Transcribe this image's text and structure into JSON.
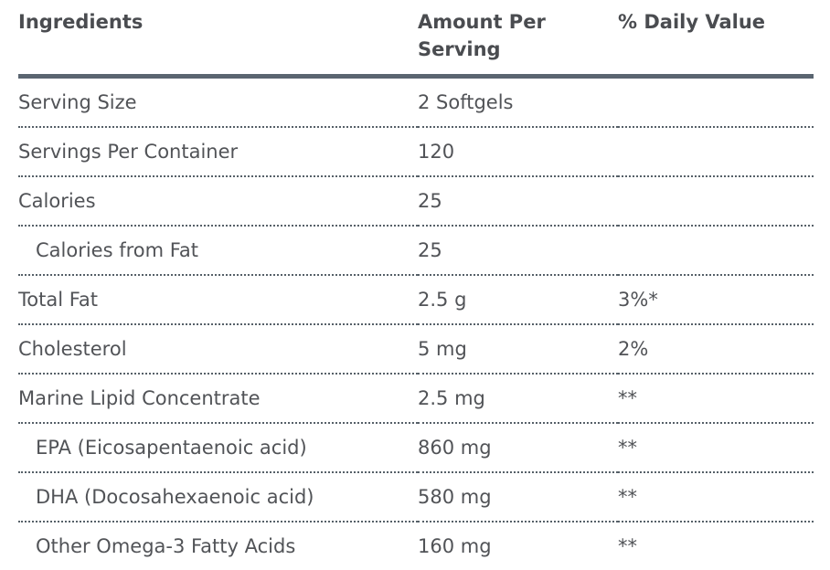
{
  "table": {
    "columns": [
      {
        "label": "Ingredients"
      },
      {
        "label": "Amount Per Serving"
      },
      {
        "label": "% Daily Value"
      }
    ],
    "rows": [
      {
        "ingredient": "Serving Size",
        "amount": "2 Softgels",
        "daily_value": ""
      },
      {
        "ingredient": "Servings Per Container",
        "amount": "120",
        "daily_value": ""
      },
      {
        "ingredient": "Calories",
        "amount": "25",
        "daily_value": ""
      },
      {
        "ingredient": "Calories from Fat",
        "amount": "25",
        "daily_value": "",
        "indent": true
      },
      {
        "ingredient": "Total Fat",
        "amount": "2.5 g",
        "daily_value": "3%*"
      },
      {
        "ingredient": "Cholesterol",
        "amount": "5 mg",
        "daily_value": "2%"
      },
      {
        "ingredient": "Marine Lipid Concentrate",
        "amount": "2.5 mg",
        "daily_value": "**"
      },
      {
        "ingredient": "EPA (Eicosapentaenoic acid)",
        "amount": "860 mg",
        "daily_value": "**",
        "indent": true
      },
      {
        "ingredient": "DHA (Docosahexaenoic acid)",
        "amount": "580 mg",
        "daily_value": "**",
        "indent": true
      },
      {
        "ingredient": "Other Omega-3 Fatty Acids",
        "amount": "160 mg",
        "daily_value": "**",
        "indent": true
      }
    ]
  },
  "colors": {
    "header_rule": "#5a6570",
    "row_divider": "#566068",
    "header_text": "#4a4c50",
    "body_text": "#515357"
  }
}
